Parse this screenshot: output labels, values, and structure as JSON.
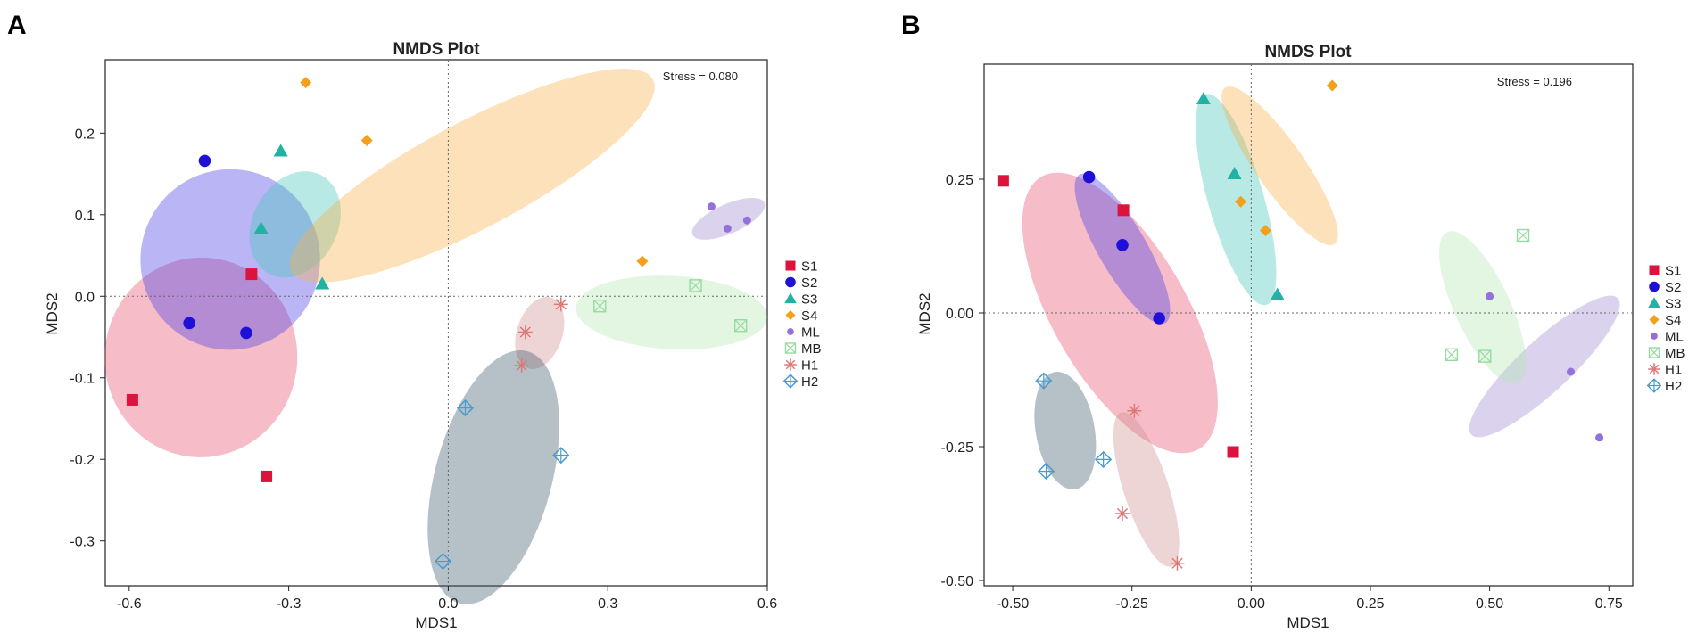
{
  "colors": {
    "S1": "#dc143c",
    "S2": "#1f10d8",
    "S3": "#20b2a2",
    "S4": "#f4a01c",
    "ML": "#9370db",
    "MB": "#98dba0",
    "H1": "#e07878",
    "H2": "#4a9cd0",
    "S1_fill": "#e8506e",
    "S2_fill": "#4a3ee6",
    "S3_fill": "#47c6b8",
    "S4_fill": "#f8b04a",
    "ML_fill": "#a08ad0",
    "MB_fill": "#b4e8b4",
    "H1_fill": "#d09090",
    "H2_fill": "#3e5a6c"
  },
  "chart_data": [
    {
      "panel_label": "A",
      "type": "scatter",
      "title": "NMDS Plot",
      "xlabel": "MDS1",
      "ylabel": "MDS2",
      "xlim": [
        -0.645,
        0.6
      ],
      "ylim": [
        -0.355,
        0.29
      ],
      "xticks": [
        -0.6,
        -0.3,
        0.0,
        0.3,
        0.6
      ],
      "xtick_labels": [
        "-0.6",
        "-0.3",
        "0.0",
        "0.3",
        "0.6"
      ],
      "yticks": [
        -0.3,
        -0.2,
        -0.1,
        0.0,
        0.1,
        0.2
      ],
      "ytick_labels": [
        "-0.3",
        "-0.2",
        "-0.1",
        "0.0",
        "0.1",
        "0.2"
      ],
      "stress_text": "Stress = 0.080",
      "legend": [
        "S1",
        "S2",
        "S3",
        "S4",
        "ML",
        "MB",
        "H1",
        "H2"
      ],
      "series": [
        {
          "name": "S1",
          "marker": "square",
          "points": [
            [
              -0.37,
              0.027
            ],
            [
              -0.594,
              -0.127
            ],
            [
              -0.342,
              -0.221
            ]
          ],
          "ellipse": {
            "cx": -0.465,
            "cy": -0.075,
            "rx": 0.188,
            "ry": 0.118,
            "angle": 94
          }
        },
        {
          "name": "S2",
          "marker": "circle",
          "points": [
            [
              -0.458,
              0.166
            ],
            [
              -0.487,
              -0.033
            ],
            [
              -0.38,
              -0.045
            ]
          ],
          "ellipse": {
            "cx": -0.41,
            "cy": 0.045,
            "rx": 0.17,
            "ry": 0.11,
            "angle": 105
          }
        },
        {
          "name": "S3",
          "marker": "triangle",
          "points": [
            [
              -0.315,
              0.178
            ],
            [
              -0.352,
              0.083
            ],
            [
              -0.237,
              0.015
            ]
          ],
          "ellipse": {
            "cx": -0.288,
            "cy": 0.088,
            "rx": 0.105,
            "ry": 0.052,
            "angle": 118
          }
        },
        {
          "name": "S4",
          "marker": "diamond",
          "points": [
            [
              -0.268,
              0.262
            ],
            [
              -0.153,
              0.191
            ],
            [
              0.365,
              0.043
            ]
          ],
          "ellipse": {
            "cx": 0.045,
            "cy": 0.148,
            "rx": 0.385,
            "ry": 0.065,
            "angle": -28
          }
        },
        {
          "name": "ML",
          "marker": "small-circle",
          "points": [
            [
              0.495,
              0.11
            ],
            [
              0.525,
              0.083
            ],
            [
              0.562,
              0.093
            ]
          ],
          "ellipse": {
            "cx": 0.527,
            "cy": 0.095,
            "rx": 0.074,
            "ry": 0.018,
            "angle": -24
          }
        },
        {
          "name": "MB",
          "marker": "boxed-x",
          "points": [
            [
              0.285,
              -0.012
            ],
            [
              0.465,
              0.013
            ],
            [
              0.55,
              -0.036
            ]
          ],
          "ellipse": {
            "cx": 0.42,
            "cy": -0.02,
            "rx": 0.18,
            "ry": 0.045,
            "angle": 3
          }
        },
        {
          "name": "H1",
          "marker": "asterisk",
          "points": [
            [
              0.212,
              -0.01
            ],
            [
              0.145,
              -0.044
            ],
            [
              0.138,
              -0.085
            ]
          ],
          "ellipse": {
            "cx": 0.172,
            "cy": -0.045,
            "rx": 0.07,
            "ry": 0.028,
            "angle": 108
          }
        },
        {
          "name": "H2",
          "marker": "circled-plus",
          "points": [
            [
              0.032,
              -0.137
            ],
            [
              0.212,
              -0.195
            ],
            [
              -0.01,
              -0.325
            ]
          ],
          "ellipse": {
            "cx": 0.085,
            "cy": -0.222,
            "rx": 0.11,
            "ry": 0.16,
            "angle": 15
          }
        }
      ]
    },
    {
      "panel_label": "B",
      "type": "scatter",
      "title": "NMDS Plot",
      "xlabel": "MDS1",
      "ylabel": "MDS2",
      "xlim": [
        -0.56,
        0.8
      ],
      "ylim": [
        -0.51,
        0.465
      ],
      "xticks": [
        -0.5,
        -0.25,
        0.0,
        0.25,
        0.5,
        0.75
      ],
      "xtick_labels": [
        "-0.50",
        "-0.25",
        "0.00",
        "0.25",
        "0.50",
        "0.75"
      ],
      "yticks": [
        -0.5,
        -0.25,
        0.0,
        0.25
      ],
      "ytick_labels": [
        "-0.50",
        "-0.25",
        "0.00",
        "0.25"
      ],
      "stress_text": "Stress = 0.196",
      "legend": [
        "S1",
        "S2",
        "S3",
        "S4",
        "ML",
        "MB",
        "H1",
        "H2"
      ],
      "series": [
        {
          "name": "S1",
          "marker": "square",
          "points": [
            [
              -0.52,
              0.247
            ],
            [
              -0.268,
              0.192
            ],
            [
              -0.038,
              -0.26
            ]
          ],
          "ellipse": {
            "cx": -0.275,
            "cy": 0.0,
            "rx": 0.33,
            "ry": 0.125,
            "angle": 60
          }
        },
        {
          "name": "S2",
          "marker": "circle",
          "points": [
            [
              -0.34,
              0.254
            ],
            [
              -0.27,
              0.127
            ],
            [
              -0.193,
              -0.01
            ]
          ],
          "ellipse": {
            "cx": -0.27,
            "cy": 0.12,
            "rx": 0.18,
            "ry": 0.045,
            "angle": 60
          }
        },
        {
          "name": "S3",
          "marker": "triangle",
          "points": [
            [
              -0.1,
              0.4
            ],
            [
              -0.035,
              0.26
            ],
            [
              0.055,
              0.034
            ]
          ],
          "ellipse": {
            "cx": -0.032,
            "cy": 0.212,
            "rx": 0.23,
            "ry": 0.052,
            "angle": 74
          }
        },
        {
          "name": "S4",
          "marker": "diamond",
          "points": [
            [
              -0.022,
              0.208
            ],
            [
              0.03,
              0.154
            ],
            [
              0.17,
              0.425
            ]
          ],
          "ellipse": {
            "cx": 0.06,
            "cy": 0.275,
            "rx": 0.2,
            "ry": 0.045,
            "angle": 55
          }
        },
        {
          "name": "ML",
          "marker": "small-circle",
          "points": [
            [
              0.5,
              0.031
            ],
            [
              0.67,
              -0.11
            ],
            [
              0.73,
              -0.233
            ]
          ],
          "ellipse": {
            "cx": 0.615,
            "cy": -0.1,
            "rx": 0.21,
            "ry": 0.048,
            "angle": -43
          }
        },
        {
          "name": "MB",
          "marker": "boxed-x",
          "points": [
            [
              0.42,
              -0.078
            ],
            [
              0.49,
              -0.081
            ],
            [
              0.57,
              0.145
            ]
          ],
          "ellipse": {
            "cx": 0.485,
            "cy": 0.01,
            "rx": 0.175,
            "ry": 0.052,
            "angle": 65
          }
        },
        {
          "name": "H1",
          "marker": "asterisk",
          "points": [
            [
              -0.245,
              -0.183
            ],
            [
              -0.27,
              -0.375
            ],
            [
              -0.155,
              -0.468
            ]
          ],
          "ellipse": {
            "cx": -0.22,
            "cy": -0.33,
            "rx": 0.17,
            "ry": 0.042,
            "angle": 72
          }
        },
        {
          "name": "H2",
          "marker": "circled-plus",
          "points": [
            [
              -0.435,
              -0.127
            ],
            [
              -0.43,
              -0.296
            ],
            [
              -0.31,
              -0.274
            ]
          ],
          "ellipse": {
            "cx": -0.39,
            "cy": -0.22,
            "rx": 0.125,
            "ry": 0.055,
            "angle": 80
          }
        }
      ]
    }
  ]
}
